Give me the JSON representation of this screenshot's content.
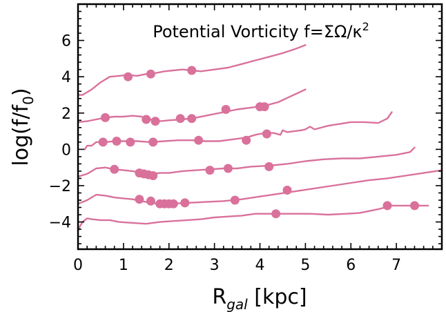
{
  "chart_data": {
    "type": "line",
    "title": "Potential Vorticity f=ΣΩ/κ",
    "title_superscript": "2",
    "xlabel": "R",
    "xlabel_subscript": "gal",
    "xlabel_unit": " [kpc]",
    "ylabel": "log(f/f",
    "ylabel_subscript": "0",
    "ylabel_close": ")",
    "xlim": [
      0,
      8
    ],
    "ylim": [
      -5.5,
      8
    ],
    "x_ticks": [
      0,
      1,
      2,
      3,
      4,
      5,
      6,
      7
    ],
    "y_ticks": [
      -4,
      -2,
      0,
      2,
      4,
      6
    ],
    "color": "#d9719b",
    "grid": false,
    "series": [
      {
        "line": [
          [
            0,
            3.0
          ],
          [
            0.1,
            3.0
          ],
          [
            0.3,
            3.3
          ],
          [
            0.5,
            3.7
          ],
          [
            0.7,
            4.0
          ],
          [
            0.9,
            4.05
          ],
          [
            1.1,
            4.1
          ],
          [
            1.3,
            4.05
          ],
          [
            1.5,
            4.15
          ],
          [
            1.7,
            4.2
          ],
          [
            1.9,
            4.3
          ],
          [
            2.1,
            4.35
          ],
          [
            2.3,
            4.4
          ],
          [
            2.5,
            4.35
          ],
          [
            2.7,
            4.3
          ],
          [
            3.0,
            4.4
          ],
          [
            3.3,
            4.5
          ],
          [
            3.6,
            4.7
          ],
          [
            3.9,
            4.9
          ],
          [
            4.2,
            5.1
          ],
          [
            4.5,
            5.3
          ],
          [
            4.8,
            5.55
          ],
          [
            5.0,
            5.75
          ]
        ],
        "points": [
          [
            1.1,
            4.0
          ],
          [
            1.6,
            4.15
          ],
          [
            2.5,
            4.35
          ]
        ]
      },
      {
        "line": [
          [
            0,
            1.5
          ],
          [
            0.2,
            1.55
          ],
          [
            0.4,
            1.65
          ],
          [
            0.6,
            1.75
          ],
          [
            0.8,
            1.8
          ],
          [
            1.0,
            1.8
          ],
          [
            1.2,
            1.85
          ],
          [
            1.4,
            1.8
          ],
          [
            1.6,
            1.65
          ],
          [
            1.8,
            1.55
          ],
          [
            2.0,
            1.6
          ],
          [
            2.3,
            1.65
          ],
          [
            2.6,
            1.75
          ],
          [
            2.9,
            1.9
          ],
          [
            3.2,
            2.05
          ],
          [
            3.5,
            2.2
          ],
          [
            3.8,
            2.3
          ],
          [
            4.1,
            2.4
          ],
          [
            4.4,
            2.6
          ],
          [
            4.7,
            2.95
          ],
          [
            5.0,
            3.3
          ]
        ],
        "points": [
          [
            0.6,
            1.75
          ],
          [
            1.5,
            1.65
          ],
          [
            1.7,
            1.55
          ],
          [
            2.25,
            1.7
          ],
          [
            2.5,
            1.7
          ],
          [
            3.25,
            2.2
          ],
          [
            4.0,
            2.35
          ],
          [
            4.1,
            2.35
          ]
        ]
      },
      {
        "line": [
          [
            0.15,
            0.0
          ],
          [
            0.2,
            0.2
          ],
          [
            0.3,
            0.2
          ],
          [
            0.4,
            0.4
          ],
          [
            0.6,
            0.4
          ],
          [
            0.8,
            0.45
          ],
          [
            1.0,
            0.45
          ],
          [
            1.3,
            0.45
          ],
          [
            1.6,
            0.4
          ],
          [
            1.9,
            0.45
          ],
          [
            2.2,
            0.5
          ],
          [
            2.5,
            0.5
          ],
          [
            2.8,
            0.45
          ],
          [
            3.1,
            0.45
          ],
          [
            3.4,
            0.55
          ],
          [
            3.7,
            0.65
          ],
          [
            3.9,
            0.8
          ],
          [
            4.1,
            0.9
          ],
          [
            4.3,
            0.9
          ],
          [
            4.45,
            0.8
          ],
          [
            4.5,
            1.05
          ],
          [
            4.6,
            0.95
          ],
          [
            4.9,
            1.05
          ],
          [
            5.0,
            1.1
          ],
          [
            5.1,
            1.25
          ],
          [
            5.2,
            1.1
          ],
          [
            5.5,
            1.3
          ],
          [
            6.0,
            1.5
          ],
          [
            6.3,
            1.5
          ],
          [
            6.6,
            1.45
          ],
          [
            6.8,
            1.7
          ],
          [
            6.9,
            2.05
          ]
        ],
        "points": [
          [
            0.55,
            0.4
          ],
          [
            0.85,
            0.45
          ],
          [
            1.15,
            0.4
          ],
          [
            1.65,
            0.4
          ],
          [
            2.65,
            0.5
          ],
          [
            3.7,
            0.5
          ],
          [
            4.15,
            0.85
          ]
        ]
      },
      {
        "line": [
          [
            0,
            -1.5
          ],
          [
            0.2,
            -1.35
          ],
          [
            0.4,
            -1.05
          ],
          [
            0.6,
            -1.0
          ],
          [
            0.8,
            -1.1
          ],
          [
            1.0,
            -1.15
          ],
          [
            1.2,
            -1.2
          ],
          [
            1.4,
            -1.3
          ],
          [
            1.6,
            -1.35
          ],
          [
            1.8,
            -1.3
          ],
          [
            2.0,
            -1.3
          ],
          [
            2.3,
            -1.2
          ],
          [
            2.6,
            -1.15
          ],
          [
            2.9,
            -1.1
          ],
          [
            3.2,
            -1.05
          ],
          [
            3.5,
            -1.05
          ],
          [
            3.8,
            -0.95
          ],
          [
            4.2,
            -0.9
          ],
          [
            4.6,
            -0.8
          ],
          [
            5.0,
            -0.65
          ],
          [
            5.4,
            -0.55
          ],
          [
            5.8,
            -0.5
          ],
          [
            6.2,
            -0.5
          ],
          [
            6.6,
            -0.4
          ],
          [
            7.0,
            -0.3
          ],
          [
            7.3,
            -0.15
          ],
          [
            7.4,
            0.1
          ]
        ],
        "points": [
          [
            0.8,
            -1.1
          ],
          [
            1.35,
            -1.3
          ],
          [
            1.45,
            -1.35
          ],
          [
            1.55,
            -1.4
          ],
          [
            1.65,
            -1.45
          ],
          [
            2.9,
            -1.15
          ],
          [
            3.3,
            -1.05
          ],
          [
            4.2,
            -0.95
          ]
        ]
      },
      {
        "line": [
          [
            0,
            -3.0
          ],
          [
            0.2,
            -2.8
          ],
          [
            0.4,
            -2.5
          ],
          [
            0.6,
            -2.55
          ],
          [
            0.8,
            -2.65
          ],
          [
            1.0,
            -2.7
          ],
          [
            1.2,
            -2.75
          ],
          [
            1.4,
            -2.85
          ],
          [
            1.6,
            -2.95
          ],
          [
            1.8,
            -3.0
          ],
          [
            2.0,
            -3.0
          ],
          [
            2.4,
            -2.95
          ],
          [
            2.8,
            -2.9
          ],
          [
            3.2,
            -2.85
          ],
          [
            3.6,
            -2.75
          ],
          [
            4.0,
            -2.6
          ],
          [
            4.4,
            -2.45
          ],
          [
            4.8,
            -2.3
          ],
          [
            5.2,
            -2.15
          ],
          [
            5.6,
            -2.0
          ],
          [
            6.0,
            -1.85
          ],
          [
            6.4,
            -1.7
          ],
          [
            6.8,
            -1.6
          ],
          [
            7.2,
            -1.45
          ],
          [
            7.6,
            -1.3
          ],
          [
            8.0,
            -1.15
          ]
        ],
        "points": [
          [
            1.35,
            -2.75
          ],
          [
            1.6,
            -2.85
          ],
          [
            1.8,
            -3.0
          ],
          [
            1.9,
            -3.0
          ],
          [
            2.0,
            -3.0
          ],
          [
            2.1,
            -3.0
          ],
          [
            2.35,
            -2.95
          ],
          [
            3.45,
            -2.8
          ],
          [
            4.6,
            -2.25
          ]
        ]
      },
      {
        "line": [
          [
            0,
            -4.5
          ],
          [
            0.05,
            -4.2
          ],
          [
            0.1,
            -4.0
          ],
          [
            0.2,
            -3.8
          ],
          [
            0.3,
            -3.85
          ],
          [
            0.5,
            -3.9
          ],
          [
            0.7,
            -3.9
          ],
          [
            0.9,
            -4.0
          ],
          [
            1.2,
            -4.05
          ],
          [
            1.5,
            -4.1
          ],
          [
            1.8,
            -4.0
          ],
          [
            2.1,
            -3.95
          ],
          [
            2.4,
            -3.9
          ],
          [
            2.7,
            -3.85
          ],
          [
            3.0,
            -3.75
          ],
          [
            3.3,
            -3.7
          ],
          [
            3.6,
            -3.65
          ],
          [
            3.9,
            -3.55
          ],
          [
            4.2,
            -3.55
          ],
          [
            4.5,
            -3.55
          ],
          [
            4.8,
            -3.55
          ],
          [
            5.1,
            -3.55
          ],
          [
            5.5,
            -3.6
          ],
          [
            5.9,
            -3.55
          ],
          [
            6.2,
            -3.5
          ],
          [
            6.6,
            -3.3
          ],
          [
            6.9,
            -3.1
          ],
          [
            7.2,
            -3.1
          ],
          [
            7.5,
            -3.1
          ],
          [
            7.7,
            -3.1
          ]
        ],
        "points": [
          [
            4.35,
            -3.55
          ],
          [
            6.8,
            -3.1
          ],
          [
            7.4,
            -3.1
          ]
        ]
      }
    ]
  }
}
